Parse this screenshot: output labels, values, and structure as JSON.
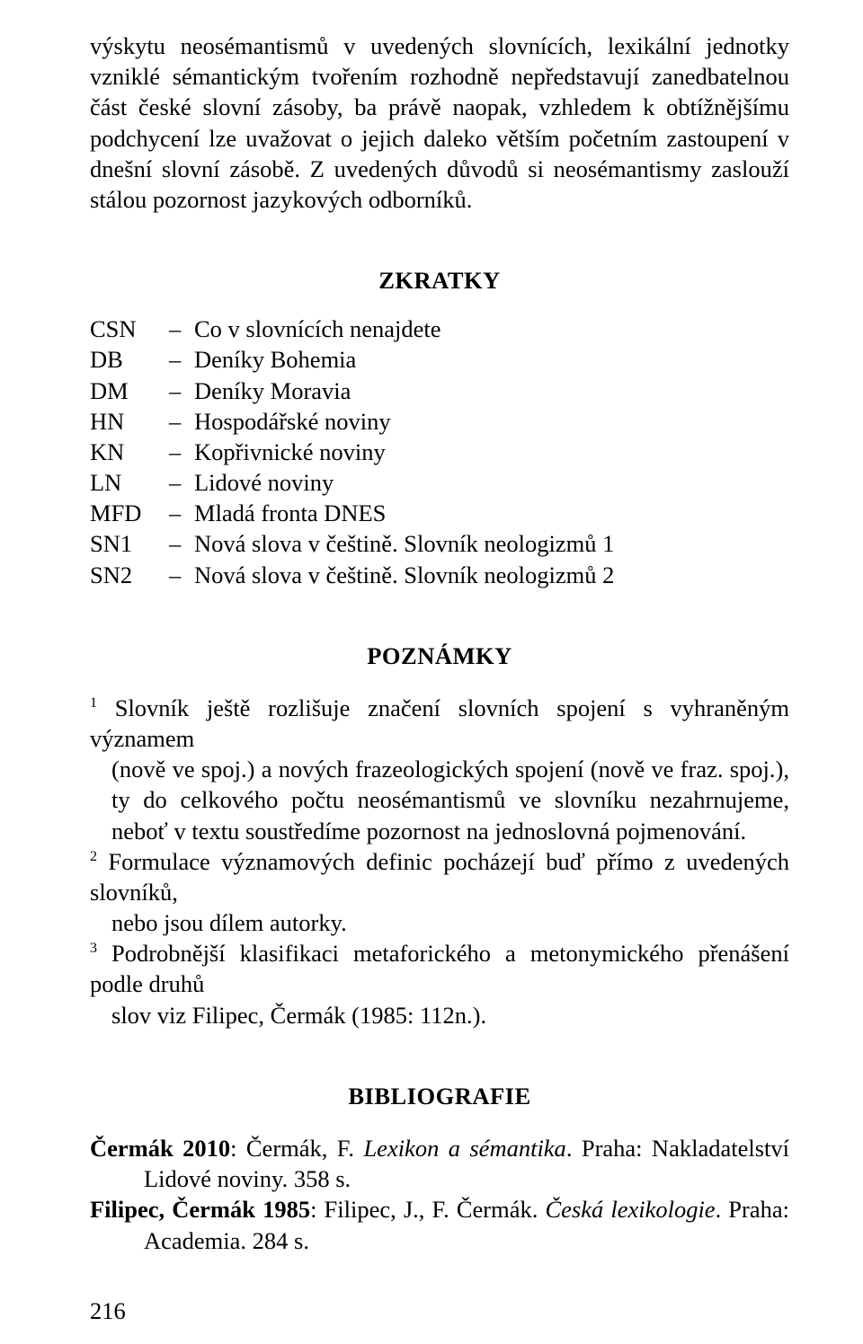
{
  "colors": {
    "background": "#ffffff",
    "text": "#000000"
  },
  "typography": {
    "font_family": "Times New Roman",
    "body_fontsize_pt": 20,
    "heading_fontsize_pt": 20,
    "heading_weight": "bold",
    "superscript_fontsize_pt": 12,
    "line_height": 1.29,
    "text_align": "justify"
  },
  "body_paragraph": "výskytu neosémantismů v uvedených slovnících, lexikální jednotky vzniklé sémantickým tvořením rozhodně nepředstavují zanedbatelnou část české slovní zásoby, ba právě naopak, vzhledem k obtížnějšímu podchycení lze uvažovat o jejich daleko větším početním zastoupení v dnešní slovní zásobě. Z uvedených důvodů si neosémantismy zaslouží stálou pozornost jazykových odborníků.",
  "headings": {
    "zkratky": "ZKRATKY",
    "poznamky": "POZNÁMKY",
    "bibliografie": "BIBLIOGRAFIE"
  },
  "abbreviations": [
    {
      "code": "CSN",
      "dash": "–",
      "expansion": "Co v slovnících nenajdete"
    },
    {
      "code": "DB",
      "dash": "–",
      "expansion": "Deníky Bohemia"
    },
    {
      "code": "DM",
      "dash": "–",
      "expansion": "Deníky Moravia"
    },
    {
      "code": "HN",
      "dash": "–",
      "expansion": "Hospodářské noviny"
    },
    {
      "code": "KN",
      "dash": "–",
      "expansion": "Kopřivnické noviny"
    },
    {
      "code": "LN",
      "dash": "–",
      "expansion": "Lidové noviny"
    },
    {
      "code": "MFD",
      "dash": "–",
      "expansion": "Mladá fronta DNES"
    },
    {
      "code": "SN1",
      "dash": "–",
      "expansion": "Nová slova v češtině. Slovník neologizmů 1"
    },
    {
      "code": "SN2",
      "dash": "–",
      "expansion": "Nová slova v češtině. Slovník neologizmů 2"
    }
  ],
  "notes": [
    {
      "marker": "1",
      "first_line": " Slovník ještě rozlišuje značení slovních spojení s vyhraněným významem ",
      "rest": "(nově ve spoj.) a nových frazeologických spojení (nově ve fraz. spoj.), ty do celkového počtu neosémantismů ve slovníku nezahrnujeme, neboť v textu soustředíme pozornost na jednoslovná pojmenování."
    },
    {
      "marker": "2",
      "first_line": " Formulace významových definic pocházejí buď přímo z uvedených slovníků, ",
      "rest": "nebo jsou dílem autorky."
    },
    {
      "marker": "3",
      "first_line": " Podrobnější klasifikaci metaforického a metonymického přenášení podle druhů ",
      "rest": "slov viz Filipec, Čermák (1985: 112n.)."
    }
  ],
  "bibliography": [
    {
      "author_bold": "Čermák 2010",
      "after_bold": ": Čermák, F. ",
      "italic": "Lexikon a sémantika",
      "tail": ". Praha: Nakladatelství Lidové noviny. 358 s."
    },
    {
      "author_bold": "Filipec, Čermák 1985",
      "after_bold": ": Filipec, J., F. Čermák. ",
      "italic": "Česká lexikologie",
      "tail": ". Praha: Academia. 284 s."
    }
  ],
  "page_number": "216"
}
